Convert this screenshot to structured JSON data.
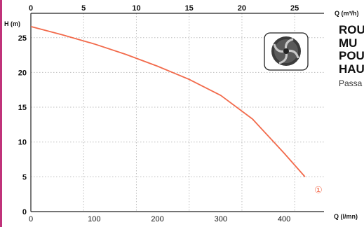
{
  "chart_data": {
    "type": "line",
    "title": "",
    "ylabel": "H (m)",
    "x_top_label": "Q (m³/h)",
    "x_bottom_label": "Q (l/mn)",
    "x_bottom_ticks": [
      "0",
      "100",
      "200",
      "300",
      "400"
    ],
    "x_top_ticks": [
      "0",
      "5",
      "10",
      "15",
      "20",
      "25"
    ],
    "y_ticks": [
      "0",
      "5",
      "10",
      "15",
      "20",
      "25"
    ],
    "xlim_lmin": [
      0,
      463
    ],
    "ylim": [
      0,
      28.5
    ],
    "grid": true,
    "series": [
      {
        "name": "①",
        "color": "#f26a4b",
        "x_lmin": [
          0,
          50,
          100,
          150,
          200,
          250,
          300,
          350,
          400,
          433
        ],
        "y_m": [
          26.6,
          25.4,
          24.1,
          22.6,
          20.9,
          19.0,
          16.7,
          13.3,
          8.4,
          5.0
        ]
      }
    ],
    "curve_label": "①"
  },
  "side": {
    "title_lines": [
      "ROU",
      "MU",
      "POU",
      "HAU"
    ],
    "subtitle": "Passa"
  },
  "colors": {
    "curve": "#f26a4b",
    "accent": "#c0327a"
  },
  "icons": {
    "impeller": "impeller-icon"
  }
}
